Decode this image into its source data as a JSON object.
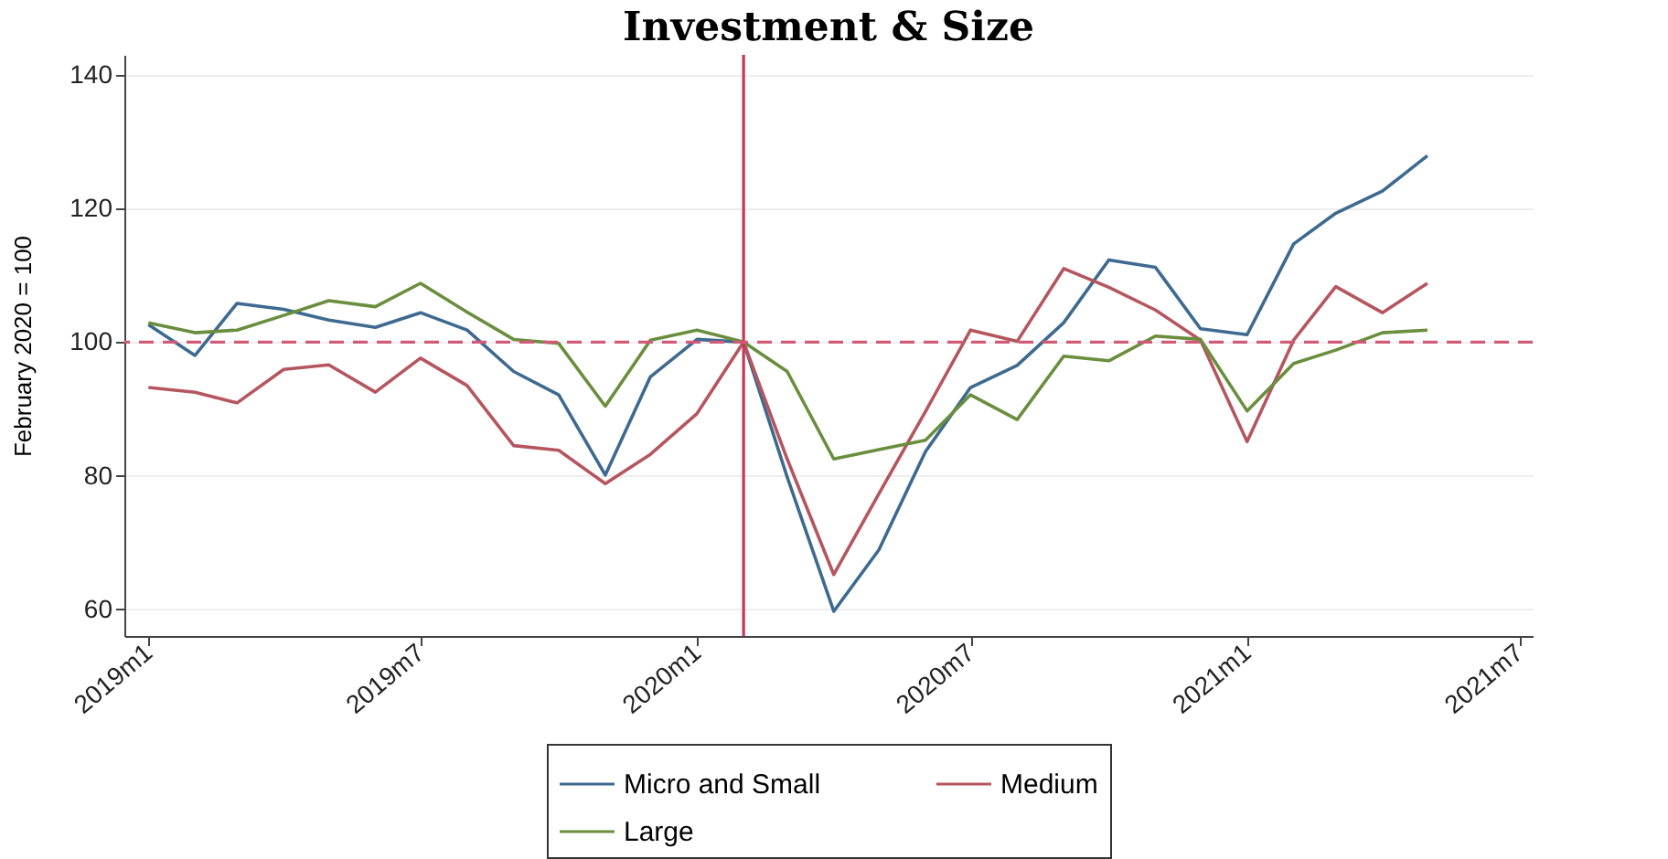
{
  "chart_data": {
    "type": "line",
    "title": "Investment & Size",
    "ylabel": "February 2020 = 100",
    "x": [
      "2019-01",
      "2019-02",
      "2019-03",
      "2019-04",
      "2019-05",
      "2019-06",
      "2019-07",
      "2019-08",
      "2019-09",
      "2019-10",
      "2019-11",
      "2019-12",
      "2020-01",
      "2020-02",
      "2020-03",
      "2020-04",
      "2020-05",
      "2020-06",
      "2020-07",
      "2020-08",
      "2020-09",
      "2020-10",
      "2020-11",
      "2020-12",
      "2021-01",
      "2021-02",
      "2021-03",
      "2021-04",
      "2021-05"
    ],
    "series": [
      {
        "name": "Micro and Small",
        "color": "#3e6a8f",
        "values": [
          102.6,
          98,
          105.8,
          104.9,
          103.3,
          102.2,
          104.4,
          101.8,
          95.6,
          92.1,
          80.1,
          94.8,
          100.4,
          100,
          79.8,
          59.7,
          68.9,
          83.6,
          93.2,
          96.5,
          102.9,
          112.3,
          111.2,
          102,
          101.1,
          114.7,
          119.3,
          122.6,
          127.9
        ]
      },
      {
        "name": "Medium",
        "color": "#b5565f",
        "values": [
          93.2,
          92.5,
          90.9,
          95.9,
          96.6,
          92.5,
          97.6,
          93.5,
          84.5,
          83.8,
          78.8,
          83.2,
          89.3,
          100,
          82.5,
          65.2,
          77.3,
          89.6,
          101.8,
          100.1,
          111,
          108.2,
          104.8,
          100.3,
          85.1,
          100.3,
          108.3,
          104.4,
          108.8
        ]
      },
      {
        "name": "Large",
        "color": "#6a8e3e",
        "values": [
          102.9,
          101.4,
          101.8,
          104,
          106.2,
          105.3,
          108.8,
          104.5,
          100.4,
          99.8,
          90.4,
          100.3,
          101.8,
          100,
          95.6,
          82.5,
          83.9,
          85.3,
          92.1,
          88.4,
          97.9,
          97.2,
          100.9,
          100.4,
          89.7,
          96.8,
          98.8,
          101.4,
          101.8
        ]
      }
    ],
    "xlim": [
      "2018-12-16",
      "2021-07-10"
    ],
    "xticks": [
      {
        "value": "2019-01",
        "label": "2019m1"
      },
      {
        "value": "2019-07",
        "label": "2019m7"
      },
      {
        "value": "2020-01",
        "label": "2020m1"
      },
      {
        "value": "2020-07",
        "label": "2020m7"
      },
      {
        "value": "2021-01",
        "label": "2021m1"
      },
      {
        "value": "2021-07",
        "label": "2021m7"
      }
    ],
    "ylim": [
      56,
      143
    ],
    "yticks": [
      60,
      80,
      100,
      120,
      140
    ],
    "ref_lines": [
      {
        "axis": "x",
        "value": "2020-02",
        "color": "#c8365a",
        "line_style": "solid"
      },
      {
        "axis": "y",
        "value": 100,
        "color": "#d05a78",
        "line_style": "dashed"
      }
    ],
    "grid": "y",
    "legend": "bottom",
    "line_style": "solid"
  }
}
